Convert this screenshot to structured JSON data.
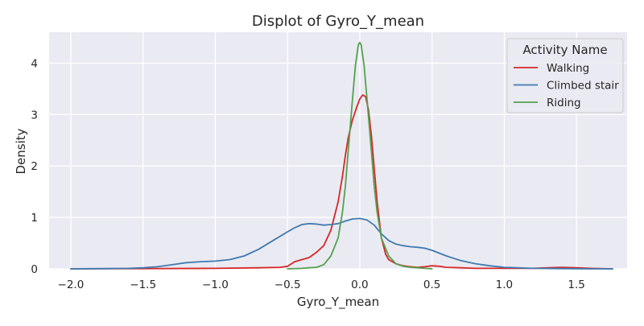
{
  "chart_data": {
    "type": "line",
    "title": "Displot of Gyro_Y_mean",
    "xlabel": "Gyro_Y_mean",
    "ylabel": "Density",
    "xlim": [
      -2.15,
      1.85
    ],
    "ylim": [
      0,
      4.6
    ],
    "xticks": [
      -2.0,
      -1.5,
      -1.0,
      -0.5,
      0.0,
      0.5,
      1.0,
      1.5
    ],
    "xtick_labels": [
      "−2.0",
      "−1.5",
      "−1.0",
      "−0.5",
      "0.0",
      "0.5",
      "1.0",
      "1.5"
    ],
    "yticks": [
      0,
      1,
      2,
      3,
      4
    ],
    "ytick_labels": [
      "0",
      "1",
      "2",
      "3",
      "4"
    ],
    "grid": true,
    "legend": {
      "title": "Activity Name",
      "position": "top-right"
    },
    "series": [
      {
        "name": "Walking",
        "color": "#d62728",
        "x": [
          -2.0,
          -1.0,
          -0.7,
          -0.55,
          -0.5,
          -0.45,
          -0.4,
          -0.35,
          -0.3,
          -0.25,
          -0.2,
          -0.15,
          -0.12,
          -0.1,
          -0.08,
          -0.05,
          -0.02,
          0.0,
          0.02,
          0.04,
          0.06,
          0.08,
          0.1,
          0.12,
          0.15,
          0.18,
          0.2,
          0.25,
          0.3,
          0.35,
          0.4,
          0.45,
          0.5,
          0.55,
          0.6,
          0.7,
          0.8,
          1.0,
          1.2,
          1.3,
          1.4,
          1.5,
          1.6,
          1.75
        ],
        "y": [
          0.0,
          0.01,
          0.02,
          0.03,
          0.05,
          0.14,
          0.18,
          0.22,
          0.32,
          0.45,
          0.75,
          1.3,
          1.8,
          2.2,
          2.55,
          2.9,
          3.15,
          3.3,
          3.38,
          3.35,
          3.1,
          2.6,
          1.95,
          1.3,
          0.6,
          0.28,
          0.18,
          0.1,
          0.06,
          0.04,
          0.03,
          0.04,
          0.06,
          0.05,
          0.03,
          0.02,
          0.01,
          0.01,
          0.01,
          0.02,
          0.03,
          0.02,
          0.01,
          0.0
        ],
        "path": [
          [
            -2.0,
            0.0
          ],
          [
            -1.0,
            0.01
          ],
          [
            -0.7,
            0.02
          ],
          [
            -0.55,
            0.03
          ],
          [
            -0.5,
            0.05
          ],
          [
            -0.45,
            0.14
          ],
          [
            -0.4,
            0.18
          ],
          [
            -0.35,
            0.22
          ],
          [
            -0.3,
            0.32
          ],
          [
            -0.25,
            0.45
          ],
          [
            -0.2,
            0.75
          ],
          [
            -0.15,
            1.3
          ],
          [
            -0.12,
            1.8
          ],
          [
            -0.1,
            2.2
          ],
          [
            -0.08,
            2.55
          ],
          [
            -0.05,
            2.9
          ],
          [
            -0.02,
            3.15
          ],
          [
            0.0,
            3.3
          ],
          [
            0.02,
            3.38
          ],
          [
            0.04,
            3.35
          ],
          [
            0.06,
            3.1
          ],
          [
            0.08,
            2.6
          ],
          [
            0.1,
            1.95
          ],
          [
            0.12,
            1.3
          ],
          [
            0.15,
            0.6
          ],
          [
            0.18,
            0.28
          ],
          [
            0.2,
            0.18
          ],
          [
            0.25,
            0.1
          ],
          [
            0.3,
            0.06
          ],
          [
            0.35,
            0.04
          ],
          [
            0.4,
            0.03
          ],
          [
            0.45,
            0.04
          ],
          [
            0.5,
            0.06
          ],
          [
            0.55,
            0.05
          ],
          [
            0.6,
            0.03
          ],
          [
            0.7,
            0.02
          ],
          [
            0.8,
            0.01
          ],
          [
            1.0,
            0.01
          ],
          [
            1.2,
            0.01
          ],
          [
            1.3,
            0.02
          ],
          [
            1.4,
            0.03
          ],
          [
            1.5,
            0.02
          ],
          [
            1.6,
            0.01
          ],
          [
            1.75,
            0.0
          ]
        ]
      },
      {
        "name": "Climbed stair",
        "color": "#3e7bb0",
        "x": [
          -2.0,
          -1.8,
          -1.6,
          -1.5,
          -1.4,
          -1.3,
          -1.2,
          -1.1,
          -1.0,
          -0.9,
          -0.8,
          -0.7,
          -0.6,
          -0.5,
          -0.45,
          -0.4,
          -0.35,
          -0.3,
          -0.25,
          -0.2,
          -0.15,
          -0.1,
          -0.05,
          0.0,
          0.05,
          0.1,
          0.15,
          0.2,
          0.25,
          0.3,
          0.35,
          0.4,
          0.45,
          0.5,
          0.6,
          0.7,
          0.8,
          0.9,
          1.0,
          1.2,
          1.4,
          1.6,
          1.75
        ],
        "y": [
          0.0,
          0.005,
          0.01,
          0.02,
          0.04,
          0.08,
          0.12,
          0.14,
          0.15,
          0.18,
          0.25,
          0.38,
          0.55,
          0.72,
          0.8,
          0.86,
          0.88,
          0.87,
          0.85,
          0.86,
          0.88,
          0.93,
          0.97,
          0.98,
          0.95,
          0.85,
          0.68,
          0.55,
          0.48,
          0.45,
          0.43,
          0.42,
          0.4,
          0.36,
          0.25,
          0.16,
          0.1,
          0.06,
          0.03,
          0.01,
          0.005,
          0.0,
          0.0
        ],
        "path": [
          [
            -2.0,
            0.0
          ],
          [
            -1.8,
            0.005
          ],
          [
            -1.6,
            0.01
          ],
          [
            -1.5,
            0.02
          ],
          [
            -1.4,
            0.04
          ],
          [
            -1.3,
            0.08
          ],
          [
            -1.2,
            0.12
          ],
          [
            -1.1,
            0.14
          ],
          [
            -1.0,
            0.15
          ],
          [
            -0.9,
            0.18
          ],
          [
            -0.8,
            0.25
          ],
          [
            -0.7,
            0.38
          ],
          [
            -0.6,
            0.55
          ],
          [
            -0.5,
            0.72
          ],
          [
            -0.45,
            0.8
          ],
          [
            -0.4,
            0.86
          ],
          [
            -0.35,
            0.88
          ],
          [
            -0.3,
            0.87
          ],
          [
            -0.25,
            0.85
          ],
          [
            -0.2,
            0.86
          ],
          [
            -0.15,
            0.88
          ],
          [
            -0.1,
            0.93
          ],
          [
            -0.05,
            0.97
          ],
          [
            0.0,
            0.98
          ],
          [
            0.05,
            0.95
          ],
          [
            0.1,
            0.85
          ],
          [
            0.15,
            0.68
          ],
          [
            0.2,
            0.55
          ],
          [
            0.25,
            0.48
          ],
          [
            0.3,
            0.45
          ],
          [
            0.35,
            0.43
          ],
          [
            0.4,
            0.42
          ],
          [
            0.45,
            0.4
          ],
          [
            0.5,
            0.36
          ],
          [
            0.6,
            0.25
          ],
          [
            0.7,
            0.16
          ],
          [
            0.8,
            0.1
          ],
          [
            0.9,
            0.06
          ],
          [
            1.0,
            0.03
          ],
          [
            1.2,
            0.01
          ],
          [
            1.4,
            0.005
          ],
          [
            1.6,
            0.0
          ],
          [
            1.75,
            0.0
          ]
        ]
      },
      {
        "name": "Riding",
        "color": "#55a04f",
        "x": [
          -0.5,
          -0.4,
          -0.35,
          -0.3,
          -0.25,
          -0.2,
          -0.15,
          -0.12,
          -0.1,
          -0.08,
          -0.05,
          -0.03,
          -0.01,
          0.0,
          0.01,
          0.03,
          0.05,
          0.08,
          0.1,
          0.12,
          0.15,
          0.2,
          0.25,
          0.3,
          0.35,
          0.4,
          0.45,
          0.5
        ],
        "y": [
          0.0,
          0.01,
          0.02,
          0.03,
          0.08,
          0.25,
          0.6,
          1.1,
          1.6,
          2.3,
          3.3,
          3.95,
          4.35,
          4.4,
          4.35,
          3.95,
          3.3,
          2.3,
          1.6,
          1.1,
          0.6,
          0.25,
          0.1,
          0.05,
          0.03,
          0.02,
          0.01,
          0.0
        ],
        "path": [
          [
            -0.5,
            0.0
          ],
          [
            -0.4,
            0.01
          ],
          [
            -0.35,
            0.02
          ],
          [
            -0.3,
            0.03
          ],
          [
            -0.25,
            0.08
          ],
          [
            -0.2,
            0.25
          ],
          [
            -0.15,
            0.6
          ],
          [
            -0.12,
            1.1
          ],
          [
            -0.1,
            1.6
          ],
          [
            -0.08,
            2.3
          ],
          [
            -0.05,
            3.3
          ],
          [
            -0.03,
            3.95
          ],
          [
            -0.01,
            4.35
          ],
          [
            0.0,
            4.4
          ],
          [
            0.01,
            4.35
          ],
          [
            0.03,
            3.95
          ],
          [
            0.05,
            3.3
          ],
          [
            0.08,
            2.3
          ],
          [
            0.1,
            1.6
          ],
          [
            0.12,
            1.1
          ],
          [
            0.15,
            0.6
          ],
          [
            0.2,
            0.25
          ],
          [
            0.25,
            0.1
          ],
          [
            0.3,
            0.05
          ],
          [
            0.35,
            0.03
          ],
          [
            0.4,
            0.02
          ],
          [
            0.45,
            0.01
          ],
          [
            0.5,
            0.0
          ]
        ]
      }
    ]
  }
}
